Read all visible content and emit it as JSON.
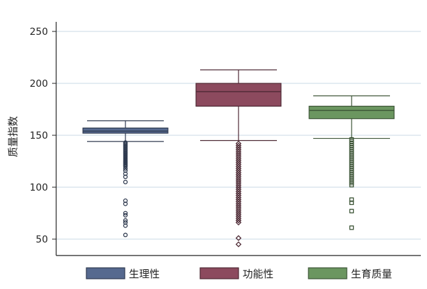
{
  "chart_data": {
    "type": "box",
    "ylabel": "质量指数",
    "ylim": [
      35,
      262
    ],
    "yticks": [
      50,
      100,
      150,
      200,
      250
    ],
    "grid": true,
    "legend_position": "bottom",
    "series": [
      {
        "name": "生理性",
        "color": "#56698f",
        "lower_whisker": 144,
        "q1": 152,
        "median": 154,
        "q3": 157,
        "upper_whisker": 164,
        "outlier_marker": "circle",
        "outliers": [
          143,
          142,
          141,
          140,
          139,
          138,
          137,
          136,
          135,
          134,
          133,
          132,
          131,
          130,
          129,
          128,
          127,
          126,
          125,
          124,
          123,
          122,
          121,
          120,
          118,
          116,
          113,
          110,
          105,
          87,
          84,
          75,
          73,
          68,
          66,
          63,
          54
        ]
      },
      {
        "name": "功能性",
        "color": "#8c4a5e",
        "lower_whisker": 145,
        "q1": 178,
        "median": 192,
        "q3": 200,
        "upper_whisker": 213,
        "outlier_marker": "diamond",
        "outliers": [
          142,
          140,
          138,
          136,
          134,
          132,
          130,
          128,
          126,
          124,
          122,
          120,
          118,
          116,
          114,
          112,
          110,
          108,
          106,
          104,
          102,
          100,
          98,
          96,
          94,
          92,
          90,
          88,
          86,
          84,
          82,
          80,
          78,
          76,
          74,
          72,
          70,
          68,
          66,
          51,
          45
        ]
      },
      {
        "name": "生育质量",
        "color": "#6b9660",
        "lower_whisker": 147,
        "q1": 166,
        "median": 174,
        "q3": 178,
        "upper_whisker": 188,
        "outlier_marker": "square",
        "outliers": [
          146,
          144,
          142,
          140,
          138,
          136,
          134,
          132,
          130,
          128,
          126,
          124,
          122,
          120,
          118,
          116,
          114,
          112,
          110,
          108,
          106,
          104,
          102,
          88,
          85,
          77,
          61
        ]
      }
    ]
  }
}
